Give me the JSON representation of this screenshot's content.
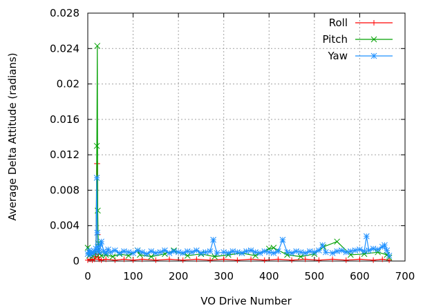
{
  "chart_data": {
    "type": "line",
    "title": "",
    "xlabel": "VO Drive Number",
    "ylabel": "Average Delta Attitude (radians)",
    "xlim": [
      0,
      700
    ],
    "ylim": [
      0,
      0.028
    ],
    "x_ticks": [
      0,
      100,
      200,
      300,
      400,
      500,
      600,
      700
    ],
    "x_tick_labels": [
      "0",
      "100",
      "200",
      "300",
      "400",
      "500",
      "600",
      "700"
    ],
    "y_ticks": [
      0,
      0.004,
      0.008,
      0.012,
      0.016,
      0.02,
      0.024,
      0.028
    ],
    "y_tick_labels": [
      "0",
      "0.004",
      "0.008",
      "0.012",
      "0.016",
      "0.02",
      "0.024",
      "0.028"
    ],
    "grid": true,
    "legend_position": "top-right",
    "series": [
      {
        "name": "Roll",
        "color": "#ff0000",
        "marker": "plus",
        "x": [
          0,
          5,
          10,
          15,
          18,
          20,
          21,
          22,
          23,
          25,
          30,
          40,
          60,
          80,
          100,
          120,
          150,
          180,
          210,
          240,
          270,
          300,
          330,
          360,
          390,
          420,
          450,
          480,
          510,
          540,
          570,
          600,
          630,
          650,
          665
        ],
        "y": [
          0.0001,
          0.0002,
          0.0001,
          0.0002,
          0.0005,
          0.011,
          0.011,
          0.003,
          0.0004,
          0.0002,
          0.0001,
          0.0002,
          0.0001,
          0.0002,
          0.0001,
          0.0002,
          0.0001,
          0.0002,
          0.0001,
          0.0002,
          0.0001,
          0.0002,
          0.0001,
          0.0002,
          0.0001,
          0.0002,
          0.0001,
          0.0002,
          0.0001,
          0.0002,
          0.0001,
          0.0002,
          0.0001,
          0.0002,
          0.0001
        ]
      },
      {
        "name": "Pitch",
        "color": "#00a000",
        "marker": "cross",
        "x": [
          0,
          3,
          6,
          10,
          14,
          18,
          20,
          21,
          22,
          23,
          26,
          30,
          40,
          55,
          70,
          90,
          110,
          115,
          140,
          170,
          190,
          220,
          250,
          280,
          310,
          340,
          370,
          400,
          410,
          440,
          470,
          500,
          520,
          550,
          580,
          610,
          640,
          660,
          665
        ],
        "y": [
          0.0015,
          0.0006,
          0.0008,
          0.0005,
          0.0007,
          0.0009,
          0.013,
          0.0243,
          0.0057,
          0.002,
          0.0008,
          0.0006,
          0.0007,
          0.0005,
          0.0008,
          0.0006,
          0.0012,
          0.0007,
          0.0005,
          0.0008,
          0.0012,
          0.0006,
          0.0008,
          0.0005,
          0.0007,
          0.0009,
          0.0006,
          0.0014,
          0.0015,
          0.0007,
          0.0005,
          0.0008,
          0.0016,
          0.0022,
          0.0007,
          0.0008,
          0.001,
          0.0007,
          0.0004
        ]
      },
      {
        "name": "Yaw",
        "color": "#1e90ff",
        "marker": "star",
        "x": [
          0,
          3,
          6,
          9,
          12,
          15,
          18,
          20,
          21,
          22,
          23,
          25,
          28,
          30,
          35,
          40,
          45,
          50,
          60,
          70,
          80,
          90,
          100,
          110,
          120,
          130,
          140,
          150,
          160,
          170,
          180,
          190,
          200,
          210,
          220,
          230,
          240,
          250,
          260,
          270,
          277,
          285,
          300,
          310,
          320,
          330,
          340,
          350,
          360,
          370,
          380,
          390,
          400,
          410,
          420,
          430,
          440,
          450,
          460,
          470,
          480,
          490,
          500,
          510,
          518,
          525,
          540,
          550,
          560,
          570,
          580,
          590,
          600,
          610,
          615,
          620,
          630,
          640,
          650,
          655,
          660,
          665
        ],
        "y": [
          0.0008,
          0.0012,
          0.0007,
          0.001,
          0.0009,
          0.0011,
          0.0014,
          0.0094,
          0.0032,
          0.0016,
          0.0012,
          0.001,
          0.0018,
          0.0022,
          0.0011,
          0.0009,
          0.0013,
          0.001,
          0.0012,
          0.0009,
          0.0011,
          0.001,
          0.0009,
          0.0012,
          0.001,
          0.0008,
          0.0011,
          0.0009,
          0.001,
          0.0012,
          0.0009,
          0.0011,
          0.001,
          0.0009,
          0.0011,
          0.001,
          0.0012,
          0.0009,
          0.001,
          0.0011,
          0.0024,
          0.0009,
          0.001,
          0.0009,
          0.0011,
          0.001,
          0.0009,
          0.0011,
          0.0012,
          0.001,
          0.0009,
          0.0011,
          0.001,
          0.0009,
          0.0011,
          0.0024,
          0.001,
          0.0009,
          0.0011,
          0.001,
          0.0009,
          0.0011,
          0.001,
          0.0012,
          0.0018,
          0.001,
          0.0009,
          0.0011,
          0.0012,
          0.001,
          0.0011,
          0.0012,
          0.0013,
          0.0011,
          0.0028,
          0.0012,
          0.0014,
          0.0013,
          0.0016,
          0.0018,
          0.0012,
          0.0006
        ]
      }
    ]
  }
}
